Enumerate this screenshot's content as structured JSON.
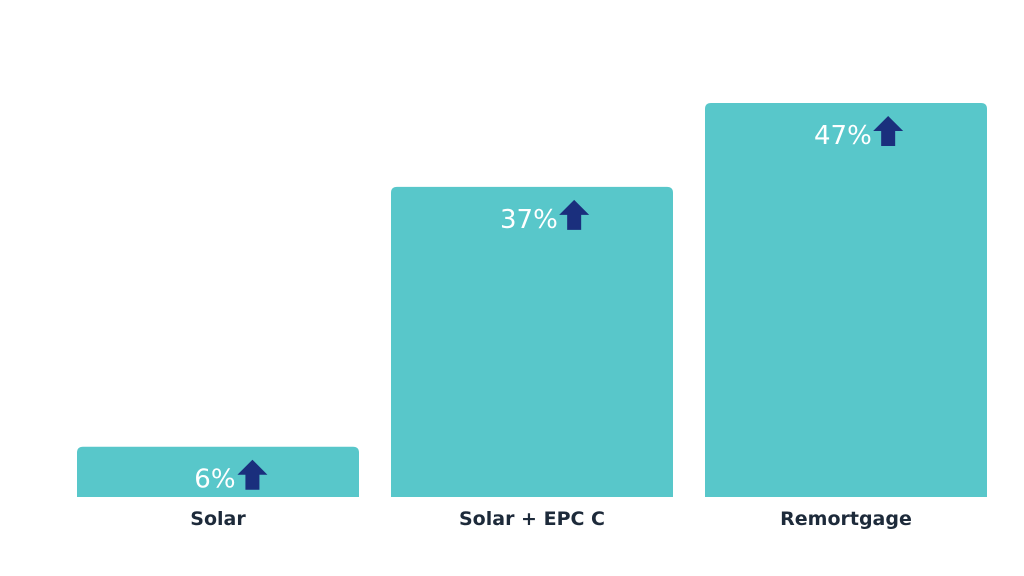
{
  "chart_data": {
    "type": "bar",
    "categories": [
      "Solar",
      "Solar + EPC C",
      "Remortgage"
    ],
    "values": [
      6,
      37,
      47
    ],
    "data_labels": [
      "6%",
      "37%",
      "47%"
    ],
    "unit": "%",
    "ylim": [
      0,
      50
    ],
    "title": "",
    "xlabel": "",
    "ylabel": "",
    "grid": false,
    "legend": "none",
    "bar_color": "#58c7ca",
    "arrow_color": "#1a2f7d",
    "label_text_color": "#ffffff",
    "category_text_color": "#1d2a3a",
    "annotation_icon": "arrow-up-icon"
  }
}
